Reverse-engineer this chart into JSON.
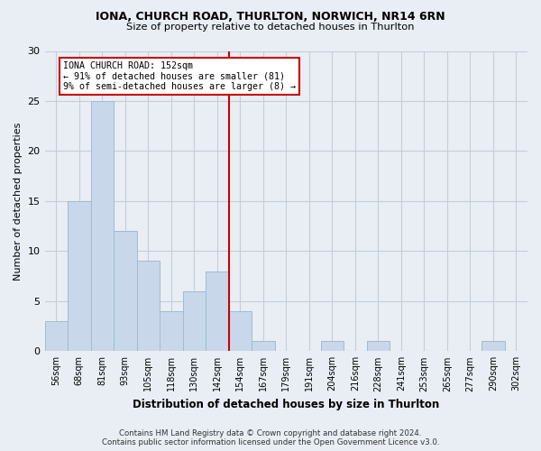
{
  "title1": "IONA, CHURCH ROAD, THURLTON, NORWICH, NR14 6RN",
  "title2": "Size of property relative to detached houses in Thurlton",
  "xlabel": "Distribution of detached houses by size in Thurlton",
  "ylabel": "Number of detached properties",
  "categories": [
    "56sqm",
    "68sqm",
    "81sqm",
    "93sqm",
    "105sqm",
    "118sqm",
    "130sqm",
    "142sqm",
    "154sqm",
    "167sqm",
    "179sqm",
    "191sqm",
    "204sqm",
    "216sqm",
    "228sqm",
    "241sqm",
    "253sqm",
    "265sqm",
    "277sqm",
    "290sqm",
    "302sqm"
  ],
  "values": [
    3,
    15,
    25,
    12,
    9,
    4,
    6,
    8,
    4,
    1,
    0,
    0,
    1,
    0,
    1,
    0,
    0,
    0,
    0,
    1,
    0
  ],
  "bar_color": "#c8d8ea",
  "bar_edge_color": "#a0bbcf",
  "subject_line_index": 8,
  "subject_line_color": "#cc0000",
  "annotation_line1": "IONA CHURCH ROAD: 152sqm",
  "annotation_line2": "← 91% of detached houses are smaller (81)",
  "annotation_line3": "9% of semi-detached houses are larger (8) →",
  "annotation_box_color": "#cc0000",
  "ylim": [
    0,
    30
  ],
  "yticks": [
    0,
    5,
    10,
    15,
    20,
    25,
    30
  ],
  "footer1": "Contains HM Land Registry data © Crown copyright and database right 2024.",
  "footer2": "Contains public sector information licensed under the Open Government Licence v3.0.",
  "bg_color": "#e8eef4",
  "plot_bg_color": "#e8eef4",
  "grid_color": "#c5cdd8"
}
